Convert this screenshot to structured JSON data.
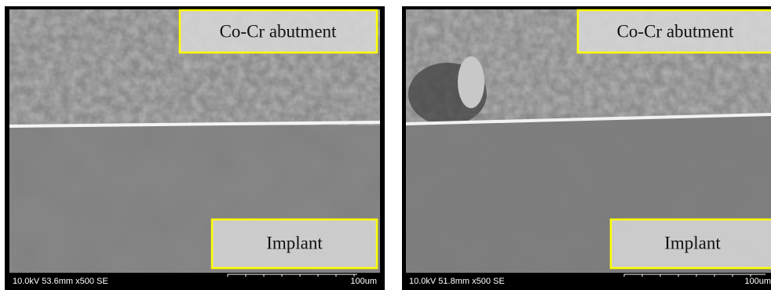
{
  "panels": [
    {
      "top_label": "Co-Cr abutment",
      "bottom_label": "Implant",
      "info": "10.0kV 53.6mm x500 SE",
      "scale": "100um"
    },
    {
      "top_label": "Co-Cr abutment",
      "bottom_label": "Implant",
      "info": "10.0kV 51.8mm x500 SE",
      "scale": "100um"
    }
  ]
}
